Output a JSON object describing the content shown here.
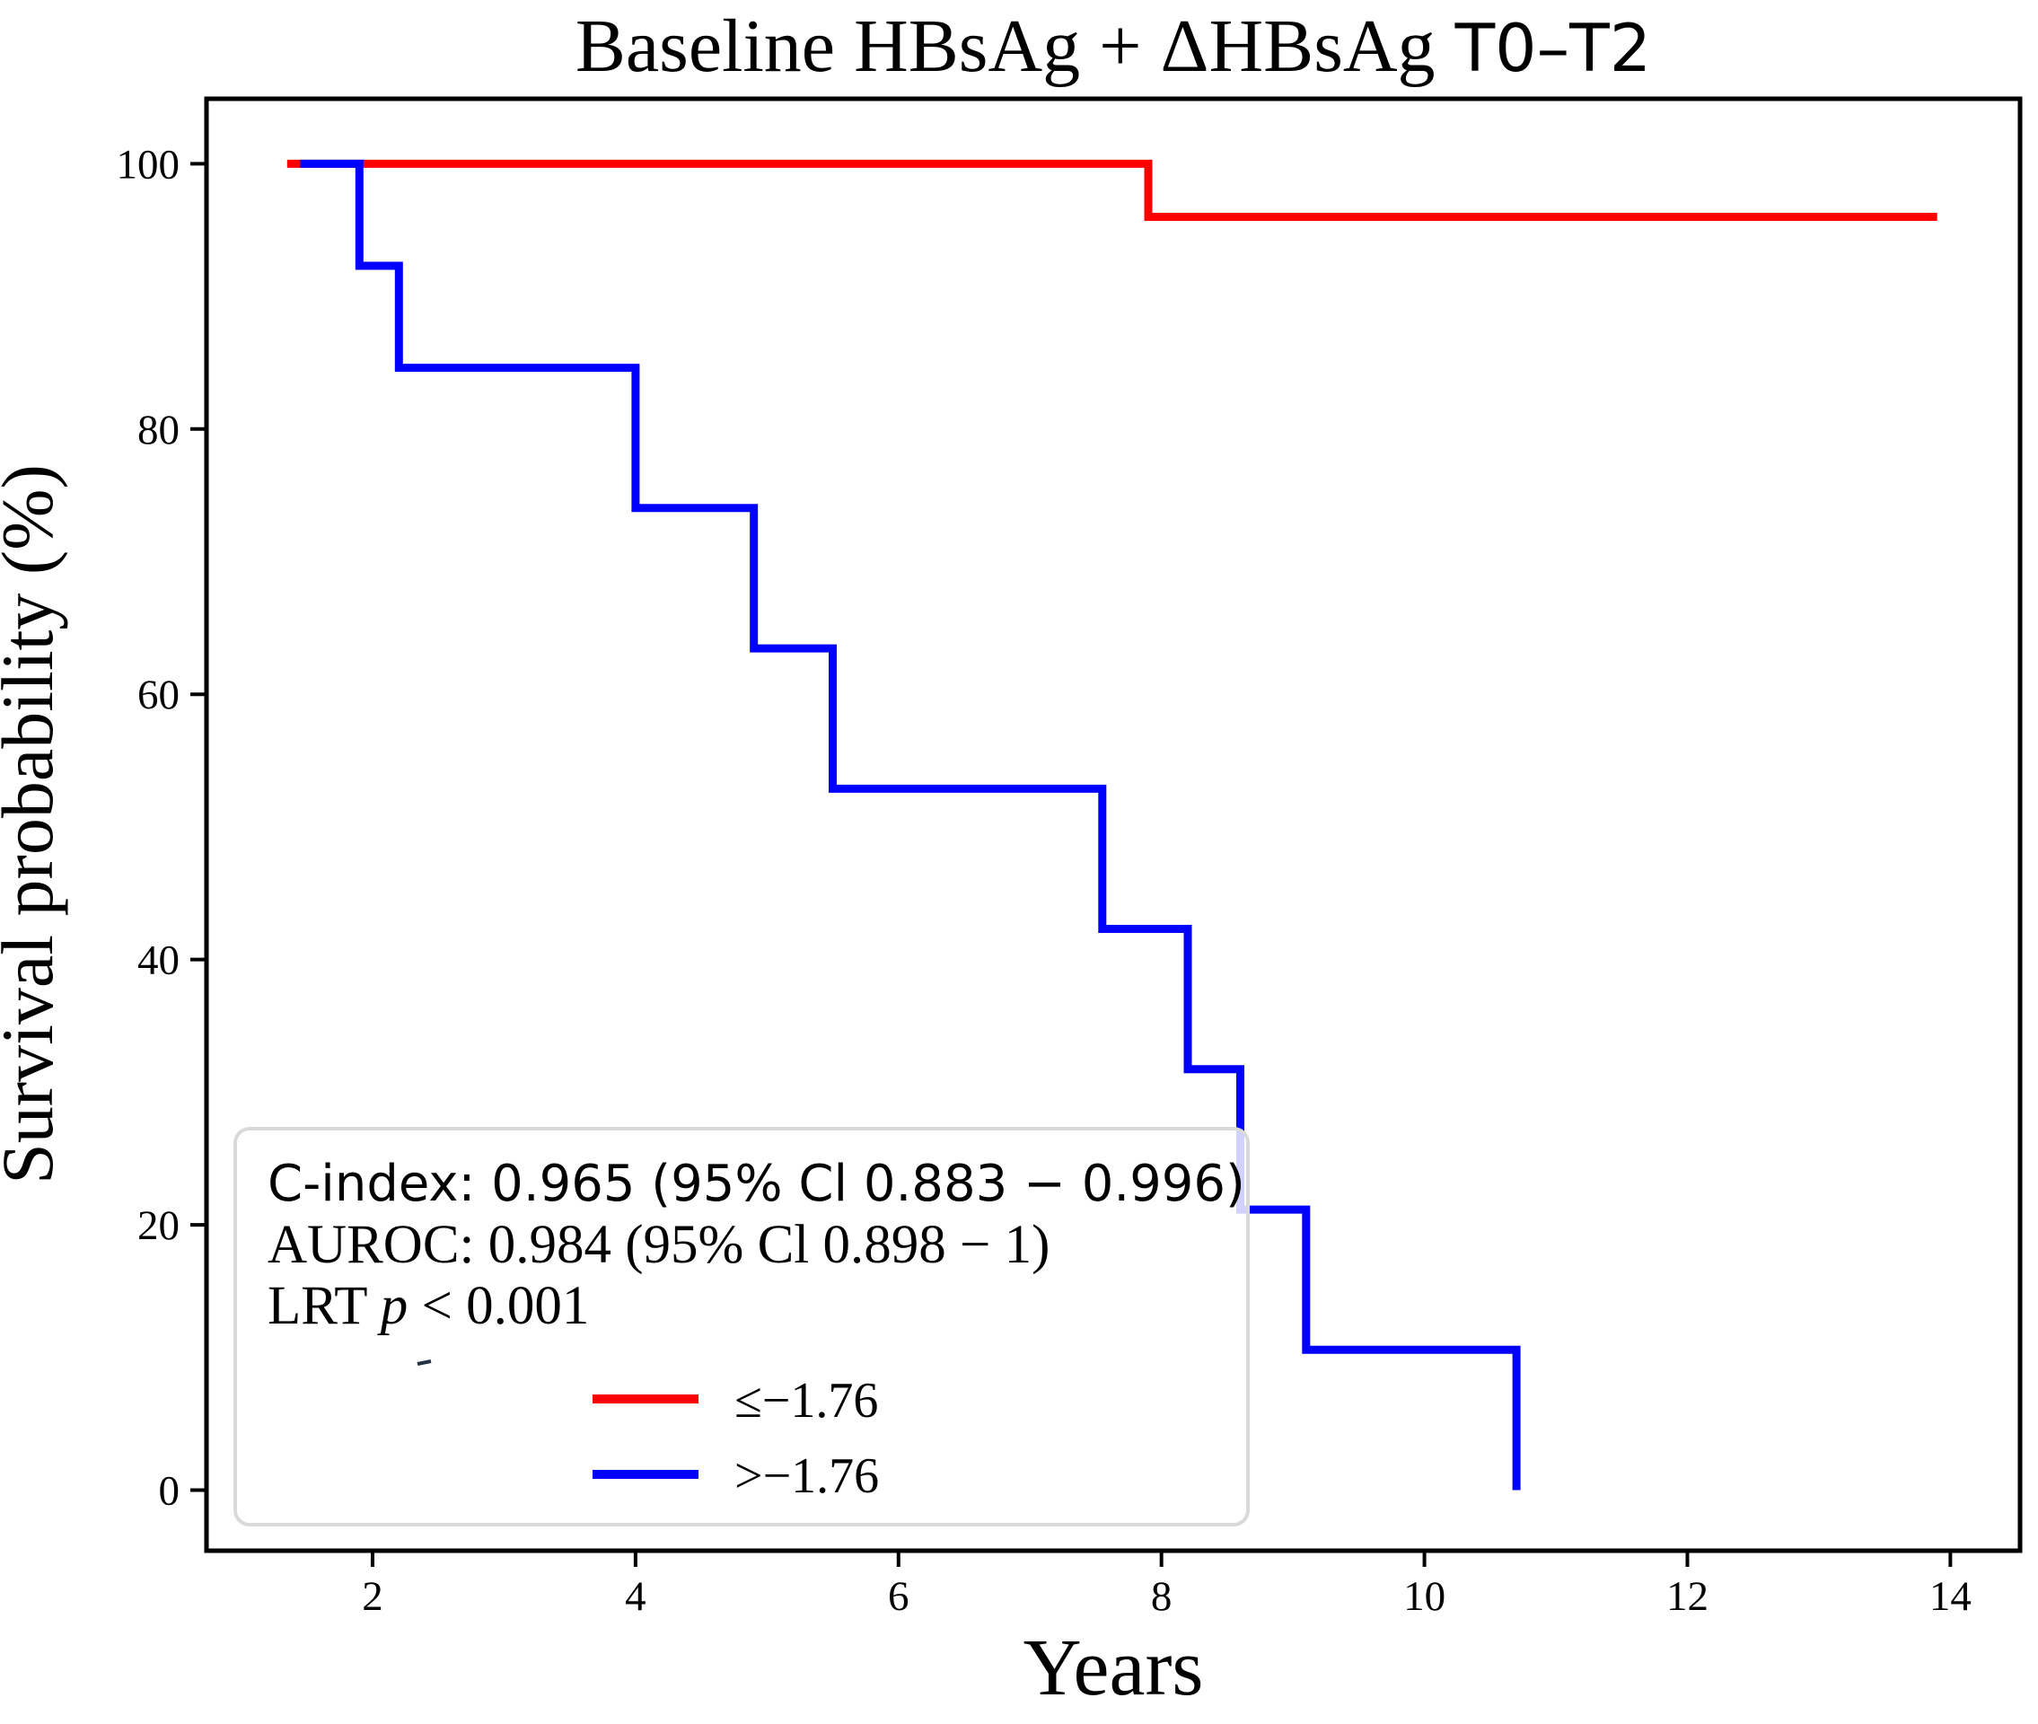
{
  "title": {
    "main": "Baseline HBsAg + ΔHBsAg",
    "suffix": "T0–T2"
  },
  "axes": {
    "x": {
      "label": "Years",
      "min": 0.737,
      "max": 14.53,
      "ticks": [
        2,
        4,
        6,
        8,
        10,
        12,
        14
      ]
    },
    "y": {
      "label": "Survival probability (%)",
      "min": -4.57,
      "max": 104.9,
      "ticks": [
        0,
        20,
        40,
        60,
        80,
        100
      ]
    }
  },
  "stats": {
    "c_index": "C-index: 0.965 (95% Cl 0.883 − 0.996)",
    "auroc": "AUROC: 0.984 (95% Cl 0.898 − 1)",
    "lrt_prefix": "LRT ",
    "lrt_p": "p",
    "lrt_value": " < 0.001"
  },
  "legend": {
    "items": [
      {
        "label": "≤−1.76",
        "color": "#ff0000"
      },
      {
        "label": ">−1.76",
        "color": "#0000ff"
      }
    ]
  },
  "chart_data": {
    "type": "line",
    "subtype": "kaplan-meier-step",
    "title": "Baseline HBsAg + ΔHBsAg T0–T2",
    "xlabel": "Years",
    "ylabel": "Survival probability (%)",
    "xlim": [
      0.737,
      14.53
    ],
    "ylim": [
      -4.57,
      104.9
    ],
    "grid": false,
    "legend_position": "lower-left box with stats",
    "series": [
      {
        "name": "≤−1.76",
        "color": "#ff0000",
        "points": [
          [
            1.35,
            100
          ],
          [
            7.9,
            100
          ],
          [
            7.9,
            96
          ],
          [
            13.9,
            96
          ]
        ]
      },
      {
        "name": ">−1.76",
        "color": "#0000ff",
        "points": [
          [
            1.45,
            100
          ],
          [
            1.9,
            100
          ],
          [
            1.9,
            92.31
          ],
          [
            2.2,
            92.31
          ],
          [
            2.2,
            84.62
          ],
          [
            4.0,
            84.62
          ],
          [
            4.0,
            74.04
          ],
          [
            4.9,
            74.04
          ],
          [
            4.9,
            63.46
          ],
          [
            5.5,
            63.46
          ],
          [
            5.5,
            52.88
          ],
          [
            7.55,
            52.88
          ],
          [
            7.55,
            42.31
          ],
          [
            8.2,
            42.31
          ],
          [
            8.2,
            31.73
          ],
          [
            8.6,
            31.73
          ],
          [
            8.6,
            21.15
          ],
          [
            9.1,
            21.15
          ],
          [
            9.1,
            10.58
          ],
          [
            10.7,
            10.58
          ],
          [
            10.7,
            0
          ]
        ]
      }
    ],
    "annotations": [
      "C-index: 0.965 (95% Cl 0.883 − 0.996)",
      "AUROC: 0.984 (95% Cl 0.898 − 1)",
      "LRT p < 0.001"
    ]
  }
}
